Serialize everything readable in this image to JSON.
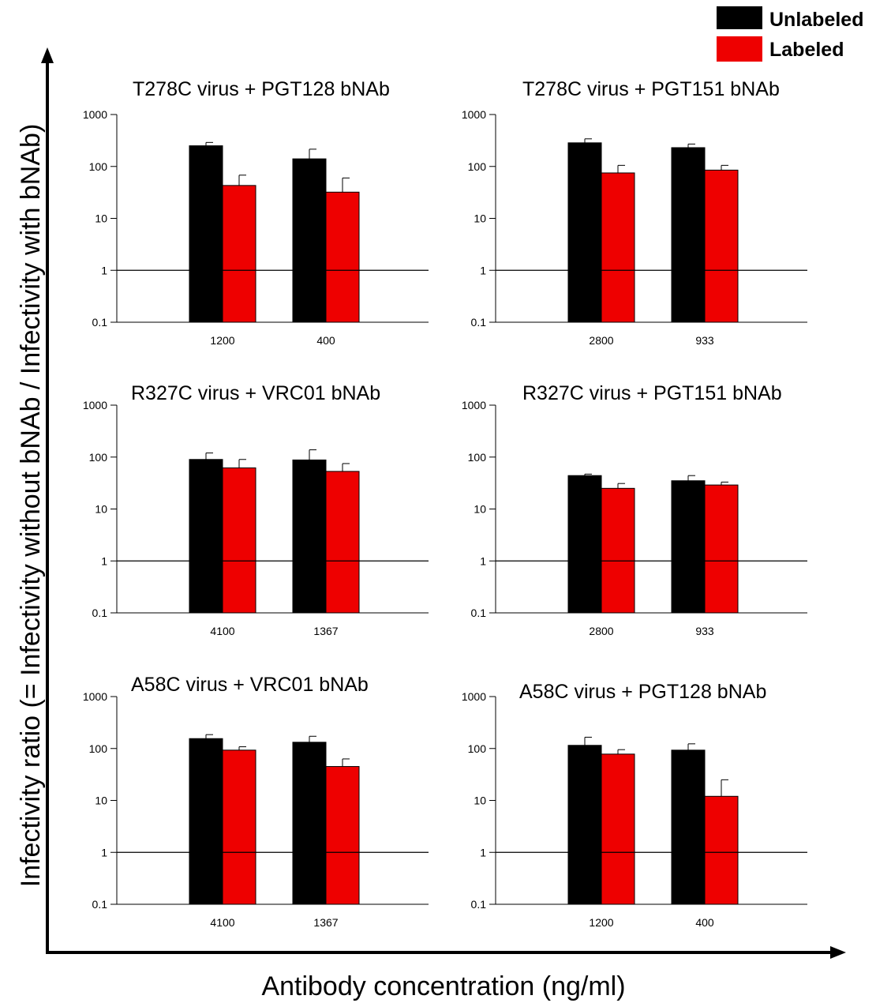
{
  "axes": {
    "ylabel": "Infectivity ratio (= Infectivity without bNAb / Infectivity with bNAb)",
    "xlabel": "Antibody concentration (ng/ml)"
  },
  "legend": {
    "placement": "top-right",
    "items": [
      {
        "name": "Unlabeled",
        "color": "#000000"
      },
      {
        "name": "Labeled",
        "color": "#ee0000"
      }
    ]
  },
  "chart_data": [
    {
      "type": "bar",
      "title": "T278C virus + PGT128 bNAb",
      "y_scale": "log",
      "ylim": [
        0.1,
        1000
      ],
      "yticks": [
        "1000",
        "100",
        "10",
        "1",
        "0.1"
      ],
      "reference_line": 1,
      "categories": [
        "1200",
        "400"
      ],
      "series": [
        {
          "name": "Unlabeled",
          "values": [
            250,
            140
          ],
          "errors": [
            40,
            75
          ]
        },
        {
          "name": "Labeled",
          "values": [
            43,
            32
          ],
          "errors": [
            25,
            28
          ]
        }
      ]
    },
    {
      "type": "bar",
      "title": "T278C virus + PGT151 bNAb",
      "y_scale": "log",
      "ylim": [
        0.1,
        1000
      ],
      "yticks": [
        "1000",
        "100",
        "10",
        "1",
        "0.1"
      ],
      "reference_line": 1,
      "categories": [
        "2800",
        "933"
      ],
      "series": [
        {
          "name": "Unlabeled",
          "values": [
            285,
            230
          ],
          "errors": [
            55,
            40
          ]
        },
        {
          "name": "Labeled",
          "values": [
            75,
            85
          ],
          "errors": [
            30,
            20
          ]
        }
      ]
    },
    {
      "type": "bar",
      "title": "R327C virus + VRC01 bNAb",
      "y_scale": "log",
      "ylim": [
        0.1,
        1000
      ],
      "yticks": [
        "1000",
        "100",
        "10",
        "1",
        "0.1"
      ],
      "reference_line": 1,
      "categories": [
        "4100",
        "1367"
      ],
      "series": [
        {
          "name": "Unlabeled",
          "values": [
            90,
            88
          ],
          "errors": [
            30,
            50
          ]
        },
        {
          "name": "Labeled",
          "values": [
            62,
            53
          ],
          "errors": [
            28,
            22
          ]
        }
      ]
    },
    {
      "type": "bar",
      "title": "R327C virus + PGT151 bNAb",
      "y_scale": "log",
      "ylim": [
        0.1,
        1000
      ],
      "yticks": [
        "1000",
        "100",
        "10",
        "1",
        "0.1"
      ],
      "reference_line": 1,
      "categories": [
        "2800",
        "933"
      ],
      "series": [
        {
          "name": "Unlabeled",
          "values": [
            44,
            35
          ],
          "errors": [
            3,
            9
          ]
        },
        {
          "name": "Labeled",
          "values": [
            25,
            29
          ],
          "errors": [
            6,
            4
          ]
        }
      ]
    },
    {
      "type": "bar",
      "title": "A58C virus + VRC01 bNAb",
      "y_scale": "log",
      "ylim": [
        0.1,
        1000
      ],
      "yticks": [
        "1000",
        "100",
        "10",
        "1",
        "0.1"
      ],
      "reference_line": 1,
      "categories": [
        "4100",
        "1367"
      ],
      "series": [
        {
          "name": "Unlabeled",
          "values": [
            155,
            132
          ],
          "errors": [
            30,
            40
          ]
        },
        {
          "name": "Labeled",
          "values": [
            93,
            45
          ],
          "errors": [
            15,
            18
          ]
        }
      ]
    },
    {
      "type": "bar",
      "title": "A58C virus + PGT128 bNAb",
      "y_scale": "log",
      "ylim": [
        0.1,
        1000
      ],
      "yticks": [
        "1000",
        "100",
        "10",
        "1",
        "0.1"
      ],
      "reference_line": 1,
      "categories": [
        "1200",
        "400"
      ],
      "series": [
        {
          "name": "Unlabeled",
          "values": [
            115,
            93
          ],
          "errors": [
            50,
            30
          ]
        },
        {
          "name": "Labeled",
          "values": [
            78,
            12
          ],
          "errors": [
            17,
            13
          ]
        }
      ]
    }
  ]
}
